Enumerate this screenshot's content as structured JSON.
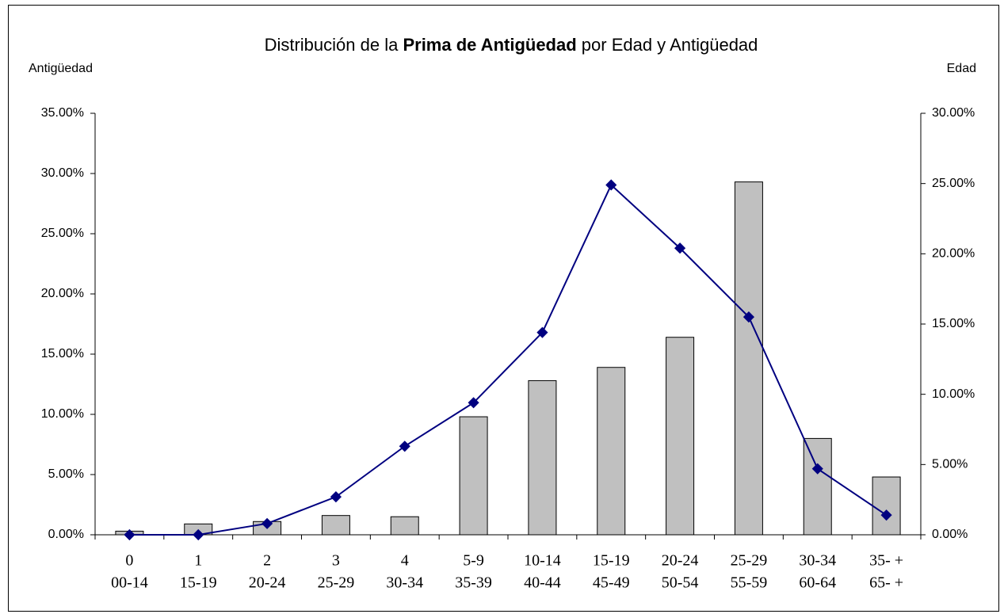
{
  "chart_data": {
    "type": "bar-line",
    "title": [
      "Distribución de la ",
      "Prima de Antigüedad",
      " por Edad y Antigüedad"
    ],
    "y_label": "Antigüedad",
    "y2_label": "Edad",
    "categories": [
      [
        "0",
        "00-14"
      ],
      [
        "1",
        "15-19"
      ],
      [
        "2",
        "20-24"
      ],
      [
        "3",
        "25-29"
      ],
      [
        "4",
        "30-34"
      ],
      [
        "5-9",
        "35-39"
      ],
      [
        "10-14",
        "40-44"
      ],
      [
        "15-19",
        "45-49"
      ],
      [
        "20-24",
        "50-54"
      ],
      [
        "25-29",
        "55-59"
      ],
      [
        "30-34",
        "60-64"
      ],
      [
        "35- +",
        "65- +"
      ]
    ],
    "series": [
      {
        "type": "bar",
        "color": "#c0c0c0",
        "values": [
          0.3,
          0.9,
          1.1,
          1.6,
          1.5,
          9.8,
          12.8,
          13.9,
          16.4,
          29.3,
          8.0,
          4.8
        ]
      },
      {
        "type": "line",
        "axis": "y2",
        "color": "#000080",
        "values": [
          0,
          0,
          0.8,
          2.7,
          6.3,
          9.4,
          14.4,
          24.9,
          20.4,
          15.5,
          4.7,
          1.4
        ]
      }
    ],
    "ylim": [
      0,
      35
    ],
    "yticks": [
      {
        "value": 0,
        "label": "0.00%"
      },
      {
        "value": 5,
        "label": "5.00%"
      },
      {
        "value": 10,
        "label": "10.00%"
      },
      {
        "value": 15,
        "label": "15.00%"
      },
      {
        "value": 20,
        "label": "20.00%"
      },
      {
        "value": 25,
        "label": "25.00%"
      },
      {
        "value": 30,
        "label": "30.00%"
      },
      {
        "value": 35,
        "label": "35.00%"
      }
    ],
    "y2lim": [
      0,
      30
    ],
    "y2ticks": [
      {
        "value": 0,
        "label": "0.00%"
      },
      {
        "value": 5,
        "label": "5.00%"
      },
      {
        "value": 10,
        "label": "10.00%"
      },
      {
        "value": 15,
        "label": "15.00%"
      },
      {
        "value": 20,
        "label": "20.00%"
      },
      {
        "value": 25,
        "label": "25.00%"
      },
      {
        "value": 30,
        "label": "30.00%"
      }
    ]
  }
}
